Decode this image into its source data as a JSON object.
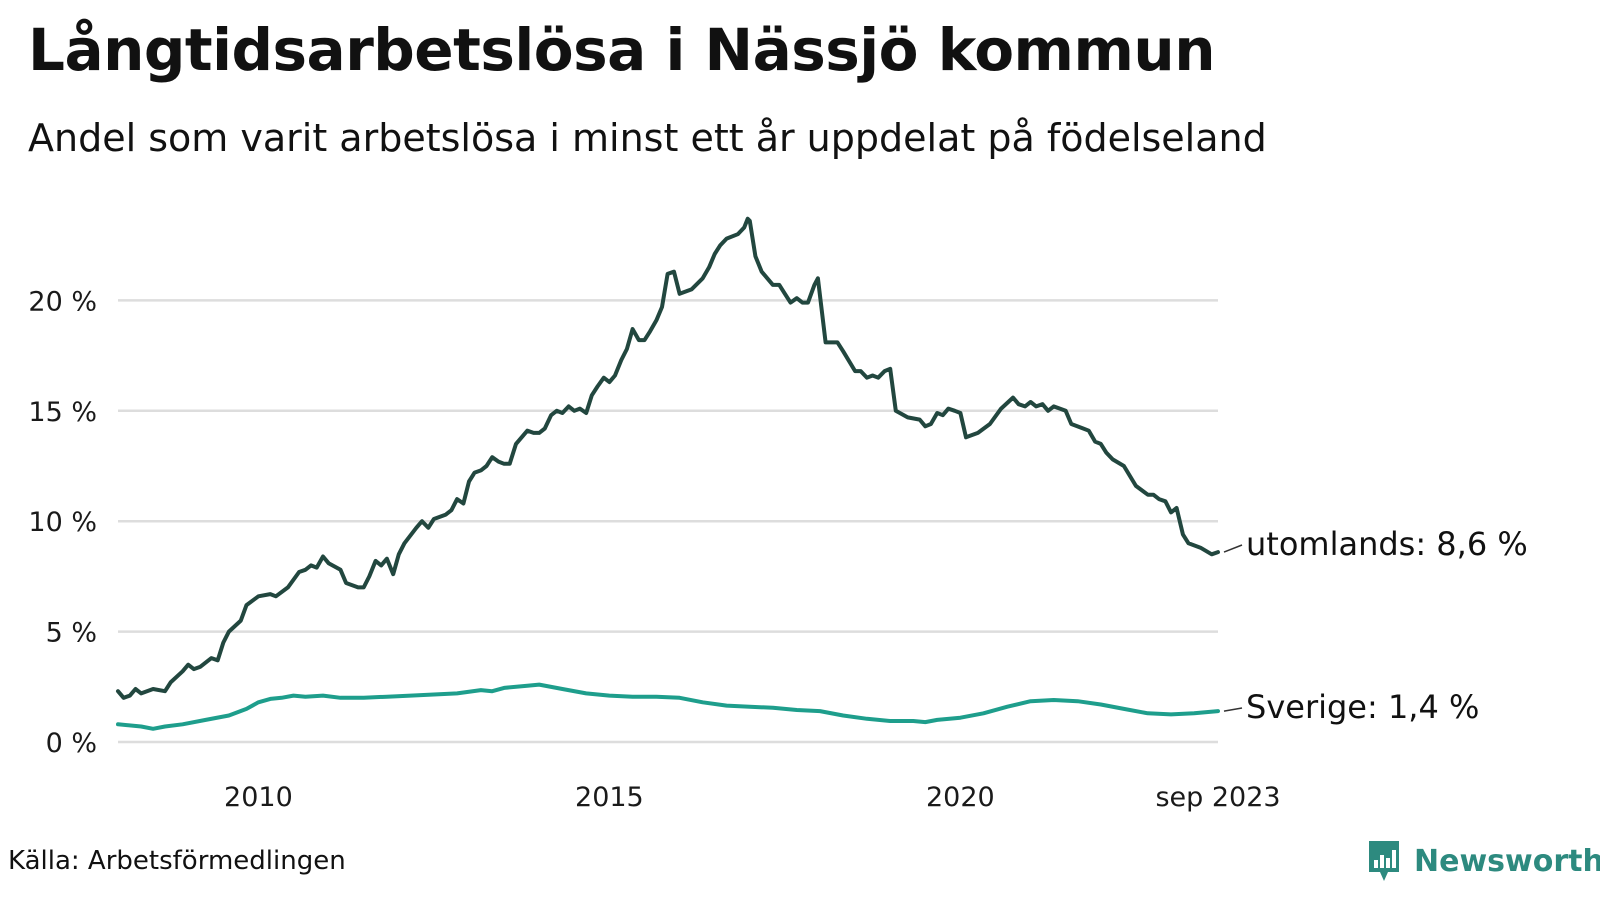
{
  "title": "Långtidsarbetslösa i Nässjö kommun",
  "subtitle": "Andel som varit arbetslösa i minst ett år uppdelat på födelseland",
  "source": "Källa: Arbetsförmedlingen",
  "brand": "Newsworthy",
  "colors": {
    "utomlands": "#22473f",
    "sverige": "#1e9e8c",
    "grid": "#dddddd",
    "brand": "#2d8a7f"
  },
  "chart_data": {
    "type": "line",
    "title": "Långtidsarbetslösa i Nässjö kommun",
    "xlabel": "",
    "ylabel": "",
    "xlim": [
      2008.0,
      2023.67
    ],
    "ylim": [
      0,
      25
    ],
    "grid": true,
    "y_ticks": [
      {
        "value": 0,
        "label": "0 %"
      },
      {
        "value": 5,
        "label": "5 %"
      },
      {
        "value": 10,
        "label": "10 %"
      },
      {
        "value": 15,
        "label": "15 %"
      },
      {
        "value": 20,
        "label": "20 %"
      }
    ],
    "x_ticks": [
      {
        "value": 2010,
        "label": "2010"
      },
      {
        "value": 2015,
        "label": "2015"
      },
      {
        "value": 2020,
        "label": "2020"
      },
      {
        "value": 2023.67,
        "label": "sep 2023"
      }
    ],
    "series": [
      {
        "name": "utomlands",
        "label": "utomlands: 8,6 %",
        "points": [
          [
            2008.0,
            2.3
          ],
          [
            2008.08,
            2.0
          ],
          [
            2008.17,
            2.1
          ],
          [
            2008.25,
            2.4
          ],
          [
            2008.33,
            2.2
          ],
          [
            2008.5,
            2.4
          ],
          [
            2008.67,
            2.3
          ],
          [
            2008.75,
            2.7
          ],
          [
            2008.92,
            3.2
          ],
          [
            2009.0,
            3.5
          ],
          [
            2009.08,
            3.3
          ],
          [
            2009.17,
            3.4
          ],
          [
            2009.33,
            3.8
          ],
          [
            2009.42,
            3.7
          ],
          [
            2009.5,
            4.5
          ],
          [
            2009.58,
            5.0
          ],
          [
            2009.75,
            5.5
          ],
          [
            2009.83,
            6.2
          ],
          [
            2010.0,
            6.6
          ],
          [
            2010.17,
            6.7
          ],
          [
            2010.25,
            6.6
          ],
          [
            2010.42,
            7.0
          ],
          [
            2010.58,
            7.7
          ],
          [
            2010.67,
            7.8
          ],
          [
            2010.75,
            8.0
          ],
          [
            2010.83,
            7.9
          ],
          [
            2010.92,
            8.4
          ],
          [
            2011.0,
            8.1
          ],
          [
            2011.17,
            7.8
          ],
          [
            2011.25,
            7.2
          ],
          [
            2011.42,
            7.0
          ],
          [
            2011.5,
            7.0
          ],
          [
            2011.58,
            7.5
          ],
          [
            2011.67,
            8.2
          ],
          [
            2011.75,
            8.0
          ],
          [
            2011.83,
            8.3
          ],
          [
            2011.92,
            7.6
          ],
          [
            2012.0,
            8.5
          ],
          [
            2012.08,
            9.0
          ],
          [
            2012.25,
            9.7
          ],
          [
            2012.33,
            10.0
          ],
          [
            2012.42,
            9.7
          ],
          [
            2012.5,
            10.1
          ],
          [
            2012.67,
            10.3
          ],
          [
            2012.75,
            10.5
          ],
          [
            2012.83,
            11.0
          ],
          [
            2012.92,
            10.8
          ],
          [
            2013.0,
            11.8
          ],
          [
            2013.08,
            12.2
          ],
          [
            2013.17,
            12.3
          ],
          [
            2013.25,
            12.5
          ],
          [
            2013.33,
            12.9
          ],
          [
            2013.42,
            12.7
          ],
          [
            2013.5,
            12.6
          ],
          [
            2013.58,
            12.6
          ],
          [
            2013.67,
            13.5
          ],
          [
            2013.83,
            14.1
          ],
          [
            2013.92,
            14.0
          ],
          [
            2014.0,
            14.0
          ],
          [
            2014.08,
            14.2
          ],
          [
            2014.17,
            14.8
          ],
          [
            2014.25,
            15.0
          ],
          [
            2014.33,
            14.9
          ],
          [
            2014.42,
            15.2
          ],
          [
            2014.5,
            15.0
          ],
          [
            2014.58,
            15.1
          ],
          [
            2014.67,
            14.9
          ],
          [
            2014.75,
            15.7
          ],
          [
            2014.83,
            16.1
          ],
          [
            2014.92,
            16.5
          ],
          [
            2015.0,
            16.3
          ],
          [
            2015.08,
            16.6
          ],
          [
            2015.17,
            17.3
          ],
          [
            2015.25,
            17.8
          ],
          [
            2015.33,
            18.7
          ],
          [
            2015.42,
            18.2
          ],
          [
            2015.5,
            18.2
          ],
          [
            2015.58,
            18.6
          ],
          [
            2015.67,
            19.1
          ],
          [
            2015.75,
            19.7
          ],
          [
            2015.83,
            21.2
          ],
          [
            2015.92,
            21.3
          ],
          [
            2016.0,
            20.3
          ],
          [
            2016.17,
            20.5
          ],
          [
            2016.33,
            21.0
          ],
          [
            2016.42,
            21.5
          ],
          [
            2016.5,
            22.1
          ],
          [
            2016.58,
            22.5
          ],
          [
            2016.67,
            22.8
          ],
          [
            2016.83,
            23.0
          ],
          [
            2016.92,
            23.3
          ],
          [
            2016.97,
            23.7
          ],
          [
            2017.0,
            23.6
          ],
          [
            2017.08,
            22.0
          ],
          [
            2017.17,
            21.3
          ],
          [
            2017.25,
            21.0
          ],
          [
            2017.33,
            20.7
          ],
          [
            2017.42,
            20.7
          ],
          [
            2017.5,
            20.3
          ],
          [
            2017.58,
            19.9
          ],
          [
            2017.67,
            20.1
          ],
          [
            2017.75,
            19.9
          ],
          [
            2017.83,
            19.9
          ],
          [
            2017.92,
            20.7
          ],
          [
            2017.97,
            21.0
          ],
          [
            2018.08,
            18.1
          ],
          [
            2018.25,
            18.1
          ],
          [
            2018.33,
            17.7
          ],
          [
            2018.5,
            16.8
          ],
          [
            2018.58,
            16.8
          ],
          [
            2018.67,
            16.5
          ],
          [
            2018.75,
            16.6
          ],
          [
            2018.83,
            16.5
          ],
          [
            2018.92,
            16.8
          ],
          [
            2019.0,
            16.9
          ],
          [
            2019.08,
            15.0
          ],
          [
            2019.25,
            14.7
          ],
          [
            2019.42,
            14.6
          ],
          [
            2019.5,
            14.3
          ],
          [
            2019.58,
            14.4
          ],
          [
            2019.67,
            14.9
          ],
          [
            2019.75,
            14.8
          ],
          [
            2019.83,
            15.1
          ],
          [
            2019.92,
            15.0
          ],
          [
            2020.0,
            14.9
          ],
          [
            2020.08,
            13.8
          ],
          [
            2020.25,
            14.0
          ],
          [
            2020.42,
            14.4
          ],
          [
            2020.58,
            15.1
          ],
          [
            2020.75,
            15.6
          ],
          [
            2020.83,
            15.3
          ],
          [
            2020.92,
            15.2
          ],
          [
            2021.0,
            15.4
          ],
          [
            2021.08,
            15.2
          ],
          [
            2021.17,
            15.3
          ],
          [
            2021.25,
            15.0
          ],
          [
            2021.33,
            15.2
          ],
          [
            2021.5,
            15.0
          ],
          [
            2021.58,
            14.4
          ],
          [
            2021.75,
            14.2
          ],
          [
            2021.83,
            14.1
          ],
          [
            2021.92,
            13.6
          ],
          [
            2022.0,
            13.5
          ],
          [
            2022.08,
            13.1
          ],
          [
            2022.17,
            12.8
          ],
          [
            2022.33,
            12.5
          ],
          [
            2022.5,
            11.6
          ],
          [
            2022.67,
            11.2
          ],
          [
            2022.75,
            11.2
          ],
          [
            2022.83,
            11.0
          ],
          [
            2022.92,
            10.9
          ],
          [
            2023.0,
            10.4
          ],
          [
            2023.08,
            10.6
          ],
          [
            2023.17,
            9.4
          ],
          [
            2023.25,
            9.0
          ],
          [
            2023.42,
            8.8
          ],
          [
            2023.58,
            8.5
          ],
          [
            2023.67,
            8.6
          ]
        ]
      },
      {
        "name": "Sverige",
        "label": "Sverige: 1,4 %",
        "points": [
          [
            2008.0,
            0.8
          ],
          [
            2008.33,
            0.7
          ],
          [
            2008.5,
            0.6
          ],
          [
            2008.67,
            0.7
          ],
          [
            2008.92,
            0.8
          ],
          [
            2009.25,
            1.0
          ],
          [
            2009.58,
            1.2
          ],
          [
            2009.83,
            1.5
          ],
          [
            2010.0,
            1.8
          ],
          [
            2010.17,
            1.95
          ],
          [
            2010.33,
            2.0
          ],
          [
            2010.5,
            2.1
          ],
          [
            2010.67,
            2.05
          ],
          [
            2010.92,
            2.1
          ],
          [
            2011.17,
            2.0
          ],
          [
            2011.5,
            2.0
          ],
          [
            2011.83,
            2.05
          ],
          [
            2012.17,
            2.1
          ],
          [
            2012.5,
            2.15
          ],
          [
            2012.83,
            2.2
          ],
          [
            2013.17,
            2.35
          ],
          [
            2013.33,
            2.3
          ],
          [
            2013.5,
            2.45
          ],
          [
            2013.83,
            2.55
          ],
          [
            2014.0,
            2.6
          ],
          [
            2014.33,
            2.4
          ],
          [
            2014.67,
            2.2
          ],
          [
            2015.0,
            2.1
          ],
          [
            2015.33,
            2.05
          ],
          [
            2015.67,
            2.05
          ],
          [
            2016.0,
            2.0
          ],
          [
            2016.33,
            1.8
          ],
          [
            2016.67,
            1.65
          ],
          [
            2017.0,
            1.6
          ],
          [
            2017.33,
            1.55
          ],
          [
            2017.67,
            1.45
          ],
          [
            2018.0,
            1.4
          ],
          [
            2018.33,
            1.2
          ],
          [
            2018.67,
            1.05
          ],
          [
            2019.0,
            0.95
          ],
          [
            2019.33,
            0.95
          ],
          [
            2019.5,
            0.9
          ],
          [
            2019.67,
            1.0
          ],
          [
            2020.0,
            1.1
          ],
          [
            2020.33,
            1.3
          ],
          [
            2020.67,
            1.6
          ],
          [
            2021.0,
            1.85
          ],
          [
            2021.33,
            1.9
          ],
          [
            2021.67,
            1.85
          ],
          [
            2022.0,
            1.7
          ],
          [
            2022.33,
            1.5
          ],
          [
            2022.67,
            1.3
          ],
          [
            2023.0,
            1.25
          ],
          [
            2023.33,
            1.3
          ],
          [
            2023.67,
            1.4
          ]
        ]
      }
    ]
  }
}
